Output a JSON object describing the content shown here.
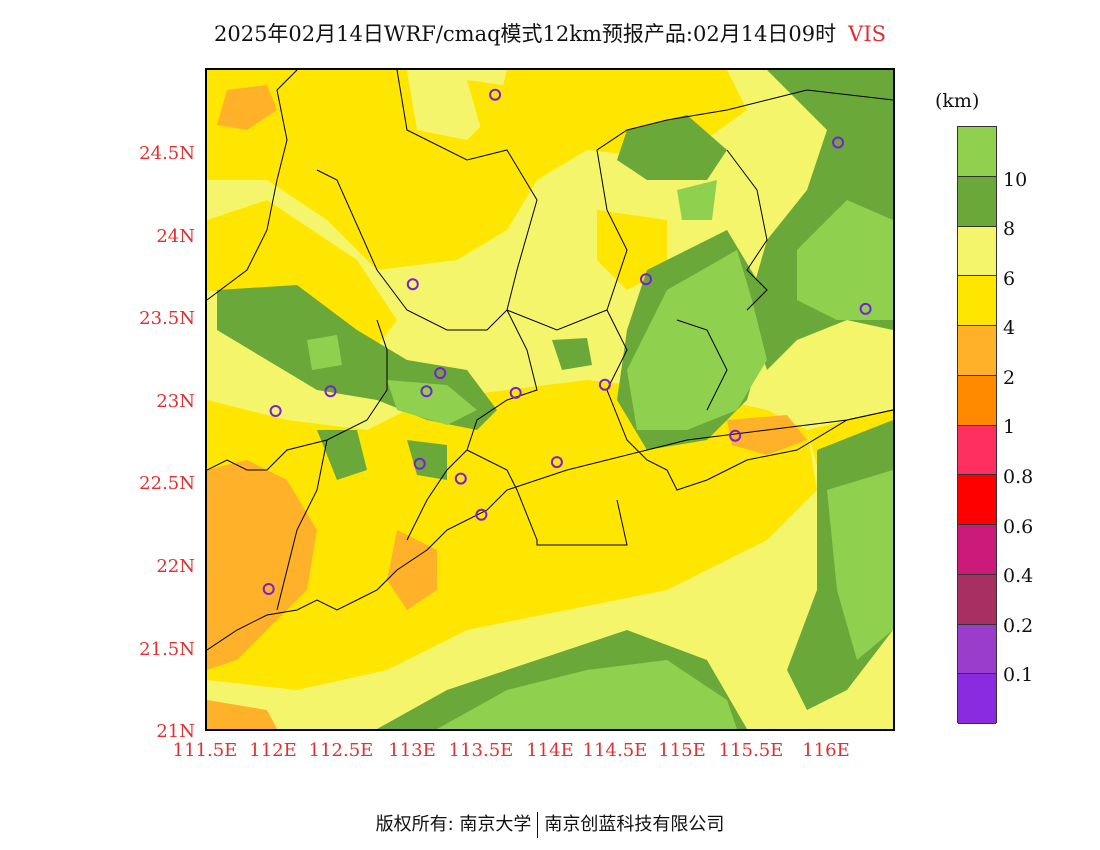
{
  "title": {
    "text": "2025年02月14日WRF/cmaq模式12km预报产品:02月14日09时",
    "variable": "VIS"
  },
  "axes": {
    "y_labels": [
      "24.5N",
      "24N",
      "23.5N",
      "23N",
      "22.5N",
      "22N",
      "21.5N",
      "21N"
    ],
    "x_labels": [
      "111.5E",
      "112E",
      "112.5E",
      "113E",
      "113.5E",
      "114E",
      "114.5E",
      "115E",
      "115.5E",
      "116E"
    ]
  },
  "colorbar": {
    "unit": "(km)",
    "labels": [
      "10",
      "8",
      "6",
      "4",
      "2",
      "1",
      "0.8",
      "0.6",
      "0.4",
      "0.2",
      "0.1"
    ],
    "colors": [
      "#8fd14f",
      "#6aa83a",
      "#f5f56b",
      "#ffe600",
      "#ffb12a",
      "#ff8a00",
      "#ff3060",
      "#ff0000",
      "#cc1a7a",
      "#a83060",
      "#9b3dcc",
      "#8a2be2"
    ]
  },
  "stations": [
    {
      "lon": 113.6,
      "lat": 24.85
    },
    {
      "lon": 116.1,
      "lat": 24.56
    },
    {
      "lon": 113.0,
      "lat": 23.7
    },
    {
      "lon": 114.7,
      "lat": 23.73
    },
    {
      "lon": 116.3,
      "lat": 23.55
    },
    {
      "lon": 112.4,
      "lat": 23.05
    },
    {
      "lon": 113.1,
      "lat": 23.05
    },
    {
      "lon": 113.2,
      "lat": 23.16
    },
    {
      "lon": 113.75,
      "lat": 23.04
    },
    {
      "lon": 114.4,
      "lat": 23.09
    },
    {
      "lon": 112.0,
      "lat": 22.93
    },
    {
      "lon": 115.35,
      "lat": 22.78
    },
    {
      "lon": 113.05,
      "lat": 22.61
    },
    {
      "lon": 113.35,
      "lat": 22.52
    },
    {
      "lon": 114.05,
      "lat": 22.62
    },
    {
      "lon": 113.5,
      "lat": 22.3
    },
    {
      "lon": 111.95,
      "lat": 21.85
    }
  ],
  "footer": {
    "left": "版权所有: 南京大学",
    "right": "南京创蓝科技有限公司"
  }
}
